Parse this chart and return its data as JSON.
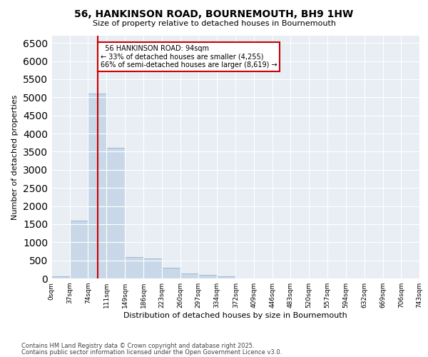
{
  "title_line1": "56, HANKINSON ROAD, BOURNEMOUTH, BH9 1HW",
  "title_line2": "Size of property relative to detached houses in Bournemouth",
  "xlabel": "Distribution of detached houses by size in Bournemouth",
  "ylabel": "Number of detached properties",
  "bin_edges": [
    0,
    37,
    74,
    111,
    149,
    186,
    223,
    260,
    297,
    334,
    372,
    409,
    446,
    483,
    520,
    557,
    594,
    632,
    669,
    706,
    743
  ],
  "bin_labels": [
    "0sqm",
    "37sqm",
    "74sqm",
    "111sqm",
    "149sqm",
    "186sqm",
    "223sqm",
    "260sqm",
    "297sqm",
    "334sqm",
    "372sqm",
    "409sqm",
    "446sqm",
    "483sqm",
    "520sqm",
    "557sqm",
    "594sqm",
    "632sqm",
    "669sqm",
    "706sqm",
    "743sqm"
  ],
  "bar_heights": [
    50,
    1600,
    5100,
    3600,
    600,
    560,
    300,
    130,
    90,
    60,
    0,
    0,
    0,
    0,
    0,
    0,
    0,
    0,
    0,
    0
  ],
  "bar_color": "#c8d8e8",
  "bar_edge_color": "#9ab4cc",
  "property_size": 94,
  "vline_color": "#cc0000",
  "annotation_text": "  56 HANKINSON ROAD: 94sqm\n← 33% of detached houses are smaller (4,255)\n66% of semi-detached houses are larger (8,619) →",
  "annotation_box_color": "#ffffff",
  "annotation_box_edge": "#cc0000",
  "ylim": [
    0,
    6700
  ],
  "yticks": [
    0,
    500,
    1000,
    1500,
    2000,
    2500,
    3000,
    3500,
    4000,
    4500,
    5000,
    5500,
    6000,
    6500
  ],
  "bg_color": "#e8eef4",
  "grid_color": "#ffffff",
  "footer_line1": "Contains HM Land Registry data © Crown copyright and database right 2025.",
  "footer_line2": "Contains public sector information licensed under the Open Government Licence v3.0."
}
